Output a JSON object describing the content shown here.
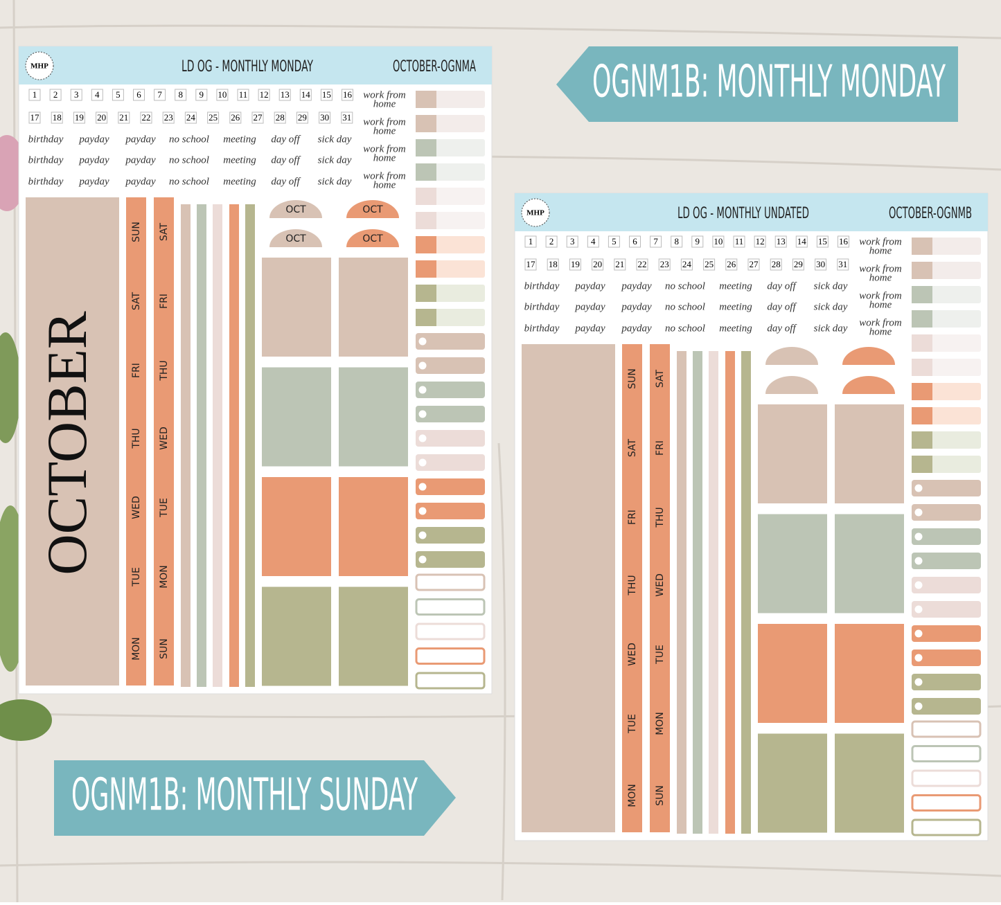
{
  "banners": [
    {
      "text": "OGNM1B: MONTHLY MONDAY"
    },
    {
      "text": "OGNM1B: MONTHLY SUNDAY"
    }
  ],
  "sheets": [
    {
      "logo": "MHP",
      "title": "LD OG - MONTHLY MONDAY",
      "code": "OCTOBER-OGNMA",
      "dates": [
        1,
        2,
        3,
        4,
        5,
        6,
        7,
        8,
        9,
        10,
        11,
        12,
        13,
        14,
        15,
        16,
        17,
        18,
        19,
        20,
        21,
        22,
        23,
        24,
        25,
        26,
        27,
        28,
        29,
        30,
        31
      ],
      "word_rows": [
        [
          "birthday",
          "payday",
          "payday",
          "no school",
          "meeting",
          "day off",
          "sick day"
        ],
        [
          "birthday",
          "payday",
          "payday",
          "no school",
          "meeting",
          "day off",
          "sick day"
        ],
        [
          "birthday",
          "payday",
          "payday",
          "no school",
          "meeting",
          "day off",
          "sick day"
        ]
      ],
      "notes": [
        [
          "work from",
          "home"
        ],
        [
          "work from",
          "home"
        ],
        [
          "work from",
          "home"
        ],
        [
          "work from",
          "home"
        ]
      ],
      "month": "OCTOBER",
      "day_strips": [
        [
          "SUN",
          "SAT",
          "FRI",
          "THU",
          "WED",
          "TUE",
          "MON"
        ],
        [
          "SAT",
          "FRI",
          "THU",
          "WED",
          "TUE",
          "MON",
          "SUN"
        ]
      ],
      "tabs": [
        "OCT",
        "OCT",
        "OCT",
        "OCT"
      ]
    },
    {
      "logo": "MHP",
      "title": "LD OG - MONTHLY UNDATED",
      "code": "OCTOBER-OGNMB",
      "dates": [
        1,
        2,
        3,
        4,
        5,
        6,
        7,
        8,
        9,
        10,
        11,
        12,
        13,
        14,
        15,
        16,
        17,
        18,
        19,
        20,
        21,
        22,
        23,
        24,
        25,
        26,
        27,
        28,
        29,
        30,
        31
      ],
      "word_rows": [
        [
          "birthday",
          "payday",
          "payday",
          "no school",
          "meeting",
          "day off",
          "sick day"
        ],
        [
          "birthday",
          "payday",
          "payday",
          "no school",
          "meeting",
          "day off",
          "sick day"
        ],
        [
          "birthday",
          "payday",
          "payday",
          "no school",
          "meeting",
          "day off",
          "sick day"
        ]
      ],
      "notes": [
        [
          "work from",
          "home"
        ],
        [
          "work from",
          "home"
        ],
        [
          "work from",
          "home"
        ],
        [
          "work from",
          "home"
        ]
      ],
      "day_strips": [
        [
          "SUN",
          "SAT",
          "FRI",
          "THU",
          "WED",
          "TUE",
          "MON"
        ],
        [
          "SAT",
          "FRI",
          "THU",
          "WED",
          "TUE",
          "MON",
          "SUN"
        ]
      ]
    }
  ]
}
